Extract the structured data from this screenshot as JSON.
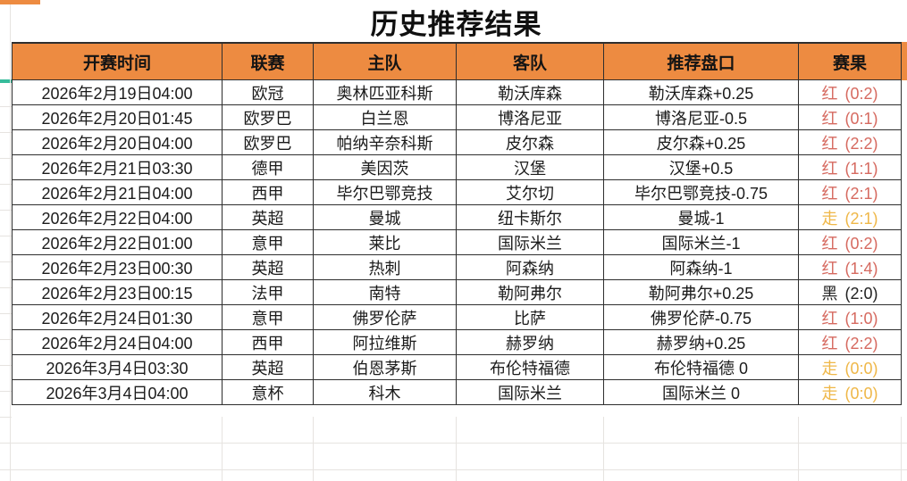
{
  "title": "历史推荐结果",
  "columns": [
    "开赛时间",
    "联赛",
    "主队",
    "客队",
    "推荐盘口",
    "赛果"
  ],
  "rows": [
    {
      "time": "2026年2月19日04:00",
      "league": "欧冠",
      "home": "奥林匹亚科斯",
      "away": "勒沃库森",
      "handicap": "勒沃库森+0.25",
      "result": "红",
      "score": "(0:2)",
      "result_type": "red"
    },
    {
      "time": "2026年2月20日01:45",
      "league": "欧罗巴",
      "home": "白兰恩",
      "away": "博洛尼亚",
      "handicap": "博洛尼亚-0.5",
      "result": "红",
      "score": "(0:1)",
      "result_type": "red"
    },
    {
      "time": "2026年2月20日04:00",
      "league": "欧罗巴",
      "home": "帕纳辛奈科斯",
      "away": "皮尔森",
      "handicap": "皮尔森+0.25",
      "result": "红",
      "score": "(2:2)",
      "result_type": "red"
    },
    {
      "time": "2026年2月21日03:30",
      "league": "德甲",
      "home": "美因茨",
      "away": "汉堡",
      "handicap": "汉堡+0.5",
      "result": "红",
      "score": "(1:1)",
      "result_type": "red"
    },
    {
      "time": "2026年2月21日04:00",
      "league": "西甲",
      "home": "毕尔巴鄂竞技",
      "away": "艾尔切",
      "handicap": "毕尔巴鄂竞技-0.75",
      "result": "红",
      "score": "(2:1)",
      "result_type": "red"
    },
    {
      "time": "2026年2月22日04:00",
      "league": "英超",
      "home": "曼城",
      "away": "纽卡斯尔",
      "handicap": "曼城-1",
      "result": "走",
      "score": "(2:1)",
      "result_type": "gold"
    },
    {
      "time": "2026年2月22日01:00",
      "league": "意甲",
      "home": "莱比",
      "away": "国际米兰",
      "handicap": "国际米兰-1",
      "result": "红",
      "score": "(0:2)",
      "result_type": "red"
    },
    {
      "time": "2026年2月23日00:30",
      "league": "英超",
      "home": "热刺",
      "away": "阿森纳",
      "handicap": "阿森纳-1",
      "result": "红",
      "score": "(1:4)",
      "result_type": "red"
    },
    {
      "time": "2026年2月23日00:15",
      "league": "法甲",
      "home": "南特",
      "away": "勒阿弗尔",
      "handicap": "勒阿弗尔+0.25",
      "result": "黑",
      "score": "(2:0)",
      "result_type": "black"
    },
    {
      "time": "2026年2月24日01:30",
      "league": "意甲",
      "home": "佛罗伦萨",
      "away": "比萨",
      "handicap": "佛罗伦萨-0.75",
      "result": "红",
      "score": "(1:0)",
      "result_type": "red"
    },
    {
      "time": "2026年2月24日04:00",
      "league": "西甲",
      "home": "阿拉维斯",
      "away": "赫罗纳",
      "handicap": "赫罗纳+0.25",
      "result": "红",
      "score": "(2:2)",
      "result_type": "red"
    },
    {
      "time": "2026年3月4日03:30",
      "league": "英超",
      "home": "伯恩茅斯",
      "away": "布伦特福德",
      "handicap": "布伦特福德 0",
      "result": "走",
      "score": "(0:0)",
      "result_type": "gold"
    },
    {
      "time": "2026年3月4日04:00",
      "league": "意杯",
      "home": "科木",
      "away": "国际米兰",
      "handicap": "国际米兰 0",
      "result": "走",
      "score": "(0:0)",
      "result_type": "gold"
    }
  ],
  "colors": {
    "header_bg": "#ED8B41",
    "red": "#D66A60",
    "gold": "#EFB748",
    "black": "#222222",
    "frozen_marker": "#36BC9B"
  }
}
